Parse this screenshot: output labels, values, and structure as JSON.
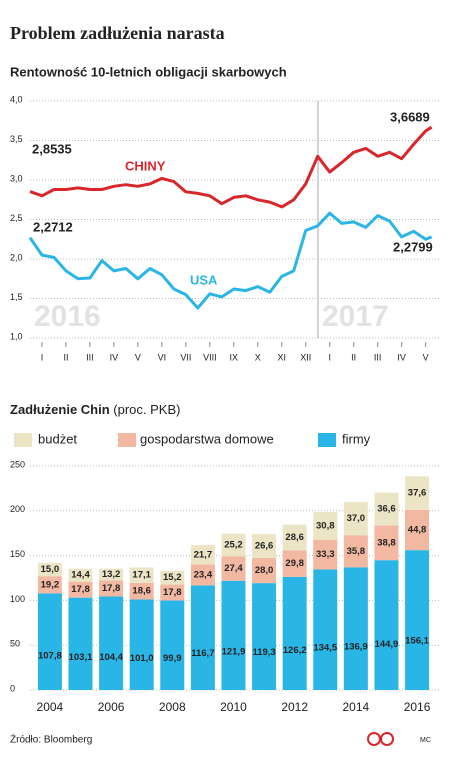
{
  "header": {
    "title": "Problem zadłużenia narasta"
  },
  "chart_data": [
    {
      "type": "line",
      "title": "Rentowność 10-letnich obligacji skarbowych",
      "annotations": [
        "2016",
        "2017"
      ],
      "x": [
        0,
        0.5,
        1,
        1.5,
        2,
        2.5,
        3,
        3.5,
        4,
        4.5,
        5,
        5.5,
        6,
        6.5,
        7,
        7.5,
        8,
        8.5,
        9,
        9.5,
        10,
        10.5,
        11,
        11.5,
        12,
        12.5,
        13,
        13.5,
        14,
        14.5,
        15,
        15.5,
        16,
        16.5,
        16.75
      ],
      "xlim": [
        0,
        17.1
      ],
      "xticks": [
        {
          "value": 0.5,
          "label": "I"
        },
        {
          "value": 1.5,
          "label": "II"
        },
        {
          "value": 2.5,
          "label": "III"
        },
        {
          "value": 3.5,
          "label": "IV"
        },
        {
          "value": 4.5,
          "label": "V"
        },
        {
          "value": 5.5,
          "label": "VI"
        },
        {
          "value": 6.5,
          "label": "VII"
        },
        {
          "value": 7.5,
          "label": "VIII"
        },
        {
          "value": 8.5,
          "label": "IX"
        },
        {
          "value": 9.5,
          "label": "X"
        },
        {
          "value": 10.5,
          "label": "XI"
        },
        {
          "value": 11.5,
          "label": "XII"
        },
        {
          "value": 12.5,
          "label": "I"
        },
        {
          "value": 13.5,
          "label": "II"
        },
        {
          "value": 14.5,
          "label": "III"
        },
        {
          "value": 15.5,
          "label": "IV"
        },
        {
          "value": 16.5,
          "label": "V"
        }
      ],
      "ylim": [
        1,
        4
      ],
      "yticks": [
        {
          "value": 1,
          "label": "1,0"
        },
        {
          "value": 1.5,
          "label": "1,5"
        },
        {
          "value": 2,
          "label": "2,0"
        },
        {
          "value": 2.5,
          "label": "2,5"
        },
        {
          "value": 3,
          "label": "3,0"
        },
        {
          "value": 3.5,
          "label": "3,5"
        },
        {
          "value": 4,
          "label": "4,0"
        }
      ],
      "grid": true,
      "series": [
        {
          "name": "CHINY",
          "color": "#d9262b",
          "values": [
            2.8535,
            2.8,
            2.88,
            2.88,
            2.9,
            2.88,
            2.88,
            2.92,
            2.94,
            2.92,
            2.95,
            3.02,
            2.98,
            2.85,
            2.83,
            2.8,
            2.7,
            2.78,
            2.8,
            2.75,
            2.72,
            2.66,
            2.75,
            2.95,
            3.3,
            3.1,
            3.22,
            3.35,
            3.4,
            3.3,
            3.35,
            3.27,
            3.45,
            3.62,
            3.6689
          ],
          "value_labels": [
            "2,8535",
            null,
            null,
            null,
            null,
            null,
            null,
            null,
            null,
            null,
            null,
            null,
            null,
            null,
            null,
            null,
            null,
            null,
            null,
            null,
            null,
            null,
            null,
            null,
            null,
            null,
            null,
            null,
            null,
            null,
            null,
            null,
            null,
            null,
            "3,6689"
          ]
        },
        {
          "name": "USA",
          "color": "#29b6e6",
          "values": [
            2.2712,
            2.05,
            2.02,
            1.85,
            1.75,
            1.76,
            1.98,
            1.85,
            1.88,
            1.75,
            1.88,
            1.8,
            1.62,
            1.55,
            1.38,
            1.56,
            1.52,
            1.62,
            1.6,
            1.65,
            1.58,
            1.78,
            1.85,
            2.36,
            2.42,
            2.58,
            2.45,
            2.47,
            2.4,
            2.55,
            2.48,
            2.28,
            2.35,
            2.25,
            2.2799
          ],
          "value_labels": [
            "2,2712",
            null,
            null,
            null,
            null,
            null,
            null,
            null,
            null,
            null,
            null,
            null,
            null,
            null,
            null,
            null,
            null,
            null,
            null,
            null,
            null,
            null,
            null,
            null,
            null,
            null,
            null,
            null,
            null,
            null,
            null,
            null,
            null,
            null,
            "2,2799"
          ]
        }
      ]
    },
    {
      "type": "bar",
      "stacked": true,
      "title": "Zadłużenie Chin",
      "subtitle": "(proc. PKB)",
      "x": [
        2004,
        2005,
        2006,
        2007,
        2008,
        2009,
        2010,
        2011,
        2012,
        2013,
        2014,
        2015,
        2016
      ],
      "xlim": [
        2003.35,
        2016.75
      ],
      "xticks": [
        2004,
        2006,
        2008,
        2010,
        2012,
        2014,
        2016
      ],
      "ylim": [
        0,
        250
      ],
      "yticks": [
        0,
        50,
        100,
        150,
        200,
        250
      ],
      "grid": true,
      "series": [
        {
          "name": "firmy",
          "color": "#29b6e6",
          "values": [
            107.8,
            103.1,
            104.4,
            101.0,
            99.9,
            116.7,
            121.9,
            119.3,
            126.2,
            134.5,
            136.9,
            144.9,
            156.1
          ],
          "value_labels": [
            "107,8",
            "103,1",
            "104,4",
            "101,0",
            "99,9",
            "116,7",
            "121,9",
            "119,3",
            "126,2",
            "134,5",
            "136,9",
            "144,9",
            "156,1"
          ]
        },
        {
          "name": "gospodarstwa domowe",
          "color": "#f2b8a2",
          "values": [
            19.2,
            17.8,
            17.8,
            18.6,
            17.8,
            23.4,
            27.4,
            28.0,
            29.8,
            33.3,
            35.8,
            38.8,
            44.8
          ],
          "value_labels": [
            "19,2",
            "17,8",
            "17,8",
            "18,6",
            "17,8",
            "23,4",
            "27,4",
            "28,0",
            "29,8",
            "33,3",
            "35,8",
            "38,8",
            "44,8"
          ]
        },
        {
          "name": "budżet",
          "color": "#ebe5c6",
          "values": [
            15.0,
            14.4,
            13.2,
            17.1,
            15.2,
            21.7,
            25.2,
            26.6,
            28.6,
            30.8,
            37.0,
            36.6,
            37.6
          ],
          "value_labels": [
            "15,0",
            "14,4",
            "13,2",
            "17,1",
            "15,2",
            "21,7",
            "25,2",
            "26,6",
            "28,6",
            "30,8",
            "37,0",
            "36,6",
            "37,6"
          ]
        }
      ]
    }
  ],
  "footer": {
    "source": "Źródło: Bloomberg",
    "credit": "MC"
  }
}
